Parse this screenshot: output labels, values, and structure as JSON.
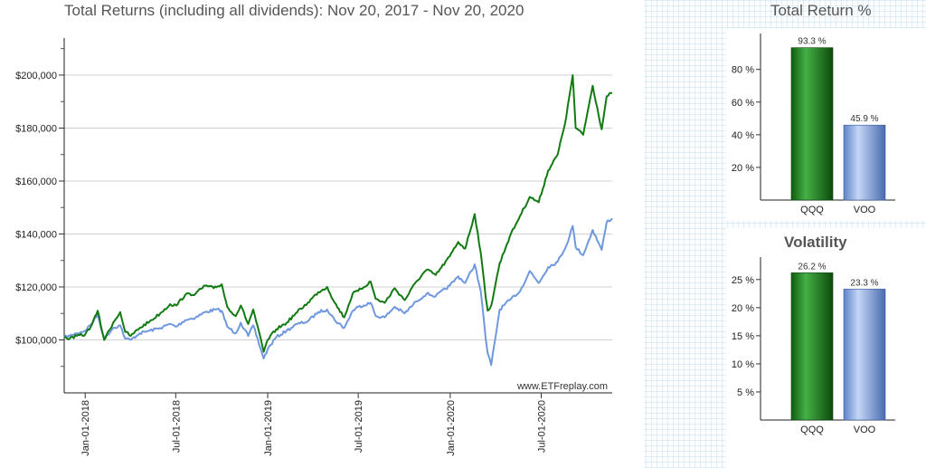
{
  "main_chart": {
    "title": "Total Returns (including all dividends): Nov 20, 2017 - Nov 20, 2020",
    "watermark": "www.ETFreplay.com"
  },
  "return_chart": {
    "title": "Total Return %"
  },
  "vol_chart": {
    "title": "Volatility"
  },
  "chart_data": [
    {
      "type": "line",
      "title": "Total Returns (including all dividends): Nov 20, 2017 - Nov 20, 2020",
      "xlabel": "",
      "ylabel": "",
      "x_ticks": [
        "Jan-01-2018",
        "Jul-01-2018",
        "Jan-01-2019",
        "Jul-01-2019",
        "Jan-01-2020",
        "Jul-01-2020"
      ],
      "y_ticks": [
        "$100,000",
        "$120,000",
        "$140,000",
        "$160,000",
        "$180,000",
        "$200,000"
      ],
      "ylim": [
        80000,
        214000
      ],
      "xlim": [
        "2017-11-20",
        "2020-11-20"
      ],
      "grid": true,
      "series": [
        {
          "name": "QQQ",
          "color": "#127a12",
          "points": [
            [
              "2017-11-20",
              101000
            ],
            [
              "2017-12-01",
              100500
            ],
            [
              "2017-12-15",
              101500
            ],
            [
              "2018-01-01",
              102000
            ],
            [
              "2018-01-15",
              106000
            ],
            [
              "2018-01-26",
              111000
            ],
            [
              "2018-02-08",
              100000
            ],
            [
              "2018-02-26",
              106500
            ],
            [
              "2018-03-12",
              110500
            ],
            [
              "2018-03-22",
              103000
            ],
            [
              "2018-04-02",
              101500
            ],
            [
              "2018-04-20",
              104500
            ],
            [
              "2018-05-10",
              107000
            ],
            [
              "2018-05-31",
              110000
            ],
            [
              "2018-06-20",
              113500
            ],
            [
              "2018-07-02",
              113000
            ],
            [
              "2018-07-20",
              117000
            ],
            [
              "2018-08-10",
              117500
            ],
            [
              "2018-08-29",
              120500
            ],
            [
              "2018-09-15",
              119500
            ],
            [
              "2018-10-01",
              121000
            ],
            [
              "2018-10-12",
              112500
            ],
            [
              "2018-10-29",
              109000
            ],
            [
              "2018-11-08",
              113000
            ],
            [
              "2018-11-23",
              106000
            ],
            [
              "2018-12-03",
              111500
            ],
            [
              "2018-12-24",
              95500
            ],
            [
              "2019-01-01",
              100000
            ],
            [
              "2019-01-18",
              104000
            ],
            [
              "2019-02-08",
              106500
            ],
            [
              "2019-03-01",
              110500
            ],
            [
              "2019-03-22",
              114000
            ],
            [
              "2019-04-12",
              118000
            ],
            [
              "2019-04-30",
              120000
            ],
            [
              "2019-05-15",
              114000
            ],
            [
              "2019-06-03",
              108500
            ],
            [
              "2019-06-20",
              117500
            ],
            [
              "2019-07-01",
              118500
            ],
            [
              "2019-07-26",
              122000
            ],
            [
              "2019-08-05",
              115500
            ],
            [
              "2019-08-23",
              114000
            ],
            [
              "2019-09-12",
              119500
            ],
            [
              "2019-10-02",
              115000
            ],
            [
              "2019-10-25",
              122000
            ],
            [
              "2019-11-15",
              126500
            ],
            [
              "2019-12-03",
              124500
            ],
            [
              "2019-12-31",
              131500
            ],
            [
              "2020-01-17",
              137000
            ],
            [
              "2020-01-31",
              134500
            ],
            [
              "2020-02-19",
              147500
            ],
            [
              "2020-03-02",
              133000
            ],
            [
              "2020-03-12",
              116000
            ],
            [
              "2020-03-16",
              111000
            ],
            [
              "2020-03-23",
              113000
            ],
            [
              "2020-04-09",
              129000
            ],
            [
              "2020-04-29",
              139000
            ],
            [
              "2020-05-20",
              147000
            ],
            [
              "2020-06-08",
              154000
            ],
            [
              "2020-06-26",
              152000
            ],
            [
              "2020-07-15",
              164000
            ],
            [
              "2020-08-03",
              170000
            ],
            [
              "2020-08-20",
              184000
            ],
            [
              "2020-09-02",
              200000
            ],
            [
              "2020-09-08",
              180000
            ],
            [
              "2020-09-23",
              177500
            ],
            [
              "2020-10-12",
              196000
            ],
            [
              "2020-10-30",
              179500
            ],
            [
              "2020-11-09",
              192000
            ],
            [
              "2020-11-20",
              193300
            ]
          ]
        },
        {
          "name": "VOO",
          "color": "#6f98df",
          "points": [
            [
              "2017-11-20",
              101000
            ],
            [
              "2017-12-01",
              101500
            ],
            [
              "2017-12-15",
              102500
            ],
            [
              "2018-01-01",
              103500
            ],
            [
              "2018-01-15",
              106500
            ],
            [
              "2018-01-26",
              109500
            ],
            [
              "2018-02-08",
              100500
            ],
            [
              "2018-02-26",
              104500
            ],
            [
              "2018-03-12",
              105500
            ],
            [
              "2018-03-22",
              100500
            ],
            [
              "2018-04-02",
              100000
            ],
            [
              "2018-04-20",
              102500
            ],
            [
              "2018-05-10",
              103500
            ],
            [
              "2018-05-31",
              104500
            ],
            [
              "2018-06-20",
              106000
            ],
            [
              "2018-07-02",
              105000
            ],
            [
              "2018-07-20",
              107500
            ],
            [
              "2018-08-10",
              108500
            ],
            [
              "2018-08-29",
              110500
            ],
            [
              "2018-09-20",
              111500
            ],
            [
              "2018-10-01",
              111000
            ],
            [
              "2018-10-12",
              105000
            ],
            [
              "2018-10-29",
              102500
            ],
            [
              "2018-11-08",
              106500
            ],
            [
              "2018-11-23",
              101500
            ],
            [
              "2018-12-03",
              105500
            ],
            [
              "2018-12-24",
              93000
            ],
            [
              "2019-01-01",
              96500
            ],
            [
              "2019-01-18",
              101000
            ],
            [
              "2019-02-08",
              103500
            ],
            [
              "2019-03-01",
              106000
            ],
            [
              "2019-03-22",
              107000
            ],
            [
              "2019-04-12",
              110500
            ],
            [
              "2019-04-30",
              111500
            ],
            [
              "2019-05-15",
              107500
            ],
            [
              "2019-06-03",
              104500
            ],
            [
              "2019-06-20",
              111000
            ],
            [
              "2019-07-01",
              112500
            ],
            [
              "2019-07-26",
              114000
            ],
            [
              "2019-08-05",
              109000
            ],
            [
              "2019-08-23",
              108500
            ],
            [
              "2019-09-12",
              112500
            ],
            [
              "2019-10-02",
              110000
            ],
            [
              "2019-10-25",
              114500
            ],
            [
              "2019-11-15",
              117500
            ],
            [
              "2019-12-03",
              116500
            ],
            [
              "2019-12-31",
              120500
            ],
            [
              "2020-01-17",
              124000
            ],
            [
              "2020-01-31",
              121500
            ],
            [
              "2020-02-19",
              128500
            ],
            [
              "2020-03-02",
              118500
            ],
            [
              "2020-03-12",
              100500
            ],
            [
              "2020-03-16",
              95000
            ],
            [
              "2020-03-23",
              90500
            ],
            [
              "2020-04-09",
              111500
            ],
            [
              "2020-04-29",
              115000
            ],
            [
              "2020-05-20",
              118500
            ],
            [
              "2020-06-08",
              126000
            ],
            [
              "2020-06-26",
              121500
            ],
            [
              "2020-07-15",
              127500
            ],
            [
              "2020-08-03",
              129500
            ],
            [
              "2020-08-20",
              135500
            ],
            [
              "2020-09-02",
              143000
            ],
            [
              "2020-09-08",
              135000
            ],
            [
              "2020-09-23",
              132000
            ],
            [
              "2020-10-12",
              141500
            ],
            [
              "2020-10-30",
              134000
            ],
            [
              "2020-11-09",
              144500
            ],
            [
              "2020-11-20",
              145900
            ]
          ]
        }
      ]
    },
    {
      "type": "bar",
      "title": "Total Return %",
      "categories": [
        "QQQ",
        "VOO"
      ],
      "values": [
        93.3,
        45.9
      ],
      "data_labels": [
        "93.3 %",
        "45.9 %"
      ],
      "y_ticks": [
        "20 %",
        "40 %",
        "60 %",
        "80 %"
      ],
      "ylim": [
        0,
        102
      ],
      "bar_colors": [
        "#1e8c1e",
        "#86a9e8"
      ]
    },
    {
      "type": "bar",
      "title": "Volatility",
      "categories": [
        "QQQ",
        "VOO"
      ],
      "values": [
        26.2,
        23.3
      ],
      "data_labels": [
        "26.2 %",
        "23.3 %"
      ],
      "y_ticks": [
        "5 %",
        "10 %",
        "15 %",
        "20 %",
        "25 %"
      ],
      "ylim": [
        0,
        29
      ],
      "bar_colors": [
        "#1e8c1e",
        "#86a9e8"
      ]
    }
  ]
}
